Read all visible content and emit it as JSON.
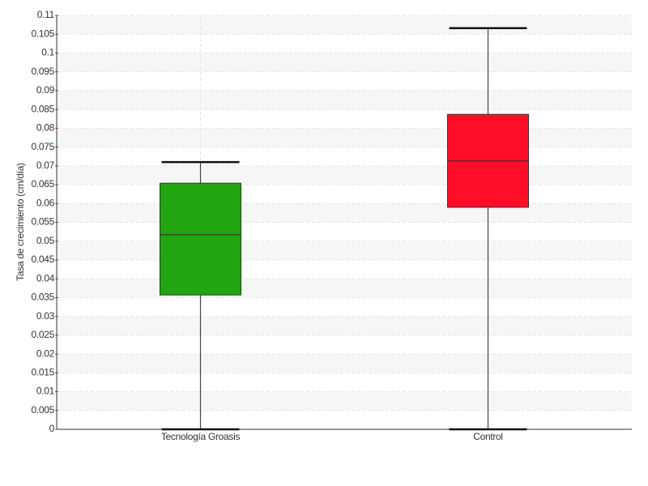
{
  "chart_data": {
    "type": "box",
    "y_label": "Tasa de crecimiento (cm/día)",
    "categories": [
      "Tecnología Groasis",
      "Control"
    ],
    "colors": [
      "#22a511",
      "#ff0d29"
    ],
    "boxes": [
      {
        "min": 0,
        "q1": 0.0357,
        "median": 0.0517,
        "q3": 0.0654,
        "max": 0.071
      },
      {
        "min": 0,
        "q1": 0.059,
        "median": 0.0713,
        "q3": 0.0837,
        "max": 0.1066
      }
    ],
    "ylim": [
      0,
      0.11
    ],
    "yticks": [
      0,
      0.005,
      0.01,
      0.015,
      0.02,
      0.025,
      0.03,
      0.035,
      0.04,
      0.045,
      0.05,
      0.055,
      0.06,
      0.065,
      0.07,
      0.075,
      0.08,
      0.085,
      0.09,
      0.095,
      0.1,
      0.105,
      0.11
    ],
    "grid": true
  }
}
